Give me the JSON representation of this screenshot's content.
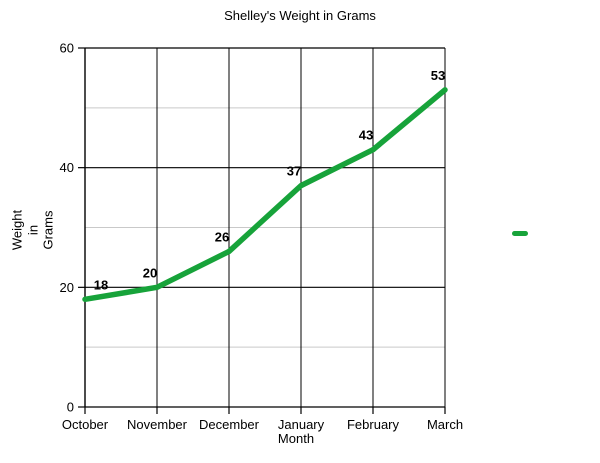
{
  "chart_data": {
    "type": "line",
    "title": "Shelley's Weight in Grams",
    "categories": [
      "October",
      "November",
      "December",
      "January",
      "February",
      "March"
    ],
    "values": [
      18,
      20,
      26,
      37,
      43,
      53
    ],
    "data_labels": [
      "18",
      "20",
      "26",
      "37",
      "43",
      "53"
    ],
    "xlabel": "Month",
    "ylabel_lines": [
      "Weight",
      "in",
      "Grams"
    ],
    "ylim": [
      0,
      60
    ],
    "yticks": [
      0,
      20,
      40,
      60
    ],
    "minor_gridlines": [
      10,
      30,
      50
    ],
    "grid": true,
    "legend_position": "right",
    "line_color": "#17a33a",
    "major_grid_color": "#000000",
    "minor_grid_color": "#c9c9c9",
    "background_color": "#ffffff"
  }
}
